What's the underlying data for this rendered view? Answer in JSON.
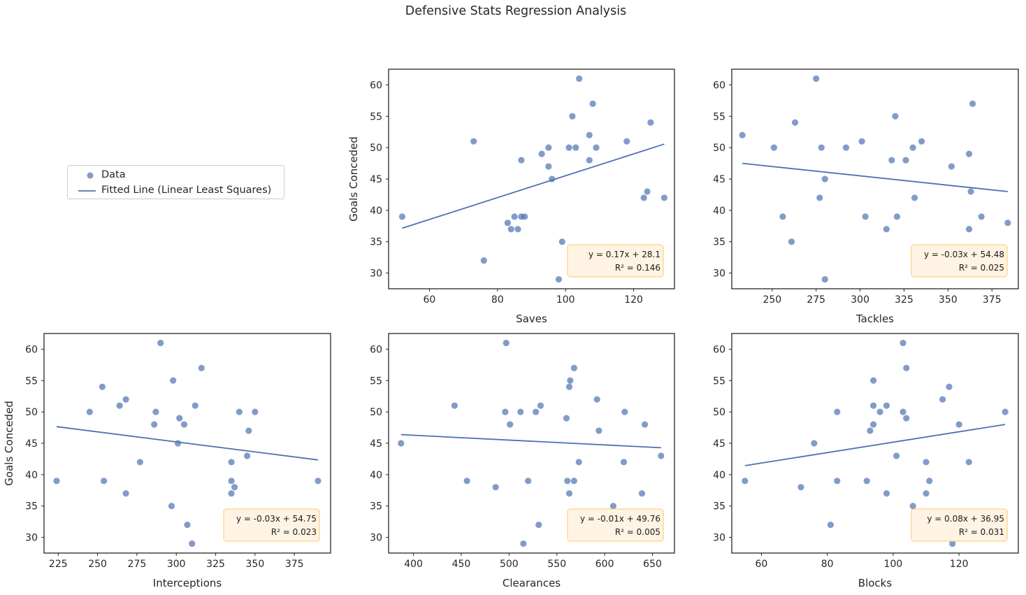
{
  "figure": {
    "title": "Defensive Stats Regression Analysis"
  },
  "legend": {
    "items": [
      {
        "label": "Data",
        "kind": "marker"
      },
      {
        "label": "Fitted Line (Linear Least Squares)",
        "kind": "line"
      }
    ]
  },
  "colors": {
    "points": "#4c72b0",
    "line": "#4c72b0",
    "box_fill": "#fff4e3",
    "box_edge": "#ffc766",
    "axes": "#262626"
  },
  "chart_data": [
    {
      "type": "scatter",
      "xlabel": "Saves",
      "ylabel": "Goals Conceded",
      "xlim": [
        48,
        132
      ],
      "ylim": [
        27.5,
        62.5
      ],
      "xticks": [
        60,
        80,
        100,
        120
      ],
      "yticks": [
        30,
        35,
        40,
        45,
        50,
        55,
        60
      ],
      "x": [
        52,
        73,
        76,
        83,
        84,
        85,
        86,
        87,
        87,
        88,
        93,
        95,
        95,
        96,
        98,
        99,
        101,
        102,
        103,
        104,
        107,
        107,
        108,
        109,
        118,
        123,
        124,
        125,
        129
      ],
      "y": [
        39,
        51,
        32,
        38,
        37,
        39,
        37,
        48,
        39,
        39,
        49,
        50,
        47,
        45,
        29,
        35,
        50,
        55,
        50,
        61,
        52,
        48,
        57,
        50,
        51,
        42,
        43,
        54,
        42
      ],
      "fit": {
        "slope": 0.17,
        "intercept": 28.1,
        "r2": 0.146
      },
      "annotation": {
        "equation": "y = 0.17x + 28.1",
        "r2_text": "R² = 0.146"
      }
    },
    {
      "type": "scatter",
      "xlabel": "Tackles",
      "ylabel": "",
      "xlim": [
        227,
        390
      ],
      "ylim": [
        27.5,
        62.5
      ],
      "xticks": [
        250,
        275,
        300,
        325,
        350,
        375
      ],
      "yticks": [
        30,
        35,
        40,
        45,
        50,
        55,
        60
      ],
      "x": [
        233,
        251,
        256,
        261,
        263,
        275,
        277,
        278,
        280,
        280,
        292,
        301,
        303,
        315,
        318,
        320,
        321,
        326,
        330,
        331,
        335,
        351,
        352,
        362,
        362,
        363,
        364,
        369,
        384
      ],
      "y": [
        52,
        50,
        39,
        35,
        54,
        61,
        42,
        50,
        45,
        29,
        50,
        51,
        39,
        37,
        48,
        55,
        39,
        48,
        50,
        42,
        51,
        32,
        47,
        49,
        37,
        43,
        57,
        39,
        38
      ],
      "fit": {
        "slope": -0.03,
        "intercept": 54.48,
        "r2": 0.025
      },
      "annotation": {
        "equation": "y = -0.03x + 54.48",
        "r2_text": "R² = 0.025"
      }
    },
    {
      "type": "scatter",
      "xlabel": "Interceptions",
      "ylabel": "Goals Conceded",
      "xlim": [
        216,
        398
      ],
      "ylim": [
        27.5,
        62.5
      ],
      "xticks": [
        225,
        250,
        275,
        300,
        325,
        350,
        375
      ],
      "yticks": [
        30,
        35,
        40,
        45,
        50,
        55,
        60
      ],
      "x": [
        224,
        245,
        253,
        254,
        264,
        268,
        268,
        277,
        286,
        287,
        290,
        297,
        298,
        301,
        302,
        305,
        307,
        310,
        312,
        316,
        335,
        335,
        335,
        337,
        340,
        345,
        346,
        350,
        390
      ],
      "y": [
        39,
        50,
        54,
        39,
        51,
        52,
        37,
        42,
        48,
        50,
        61,
        35,
        55,
        45,
        49,
        48,
        32,
        29,
        51,
        57,
        37,
        42,
        39,
        38,
        50,
        43,
        47,
        50,
        39
      ],
      "fit": {
        "slope": -0.03,
        "intercept": 54.75,
        "r2": 0.023
      },
      "annotation": {
        "equation": "y = -0.03x + 54.75",
        "r2_text": "R² = 0.023"
      }
    },
    {
      "type": "scatter",
      "xlabel": "Clearances",
      "ylabel": "",
      "xlim": [
        374,
        673
      ],
      "ylim": [
        27.5,
        62.5
      ],
      "xticks": [
        400,
        450,
        500,
        550,
        600,
        650
      ],
      "yticks": [
        30,
        35,
        40,
        45,
        50,
        55,
        60
      ],
      "x": [
        387,
        443,
        456,
        486,
        496,
        497,
        501,
        512,
        515,
        520,
        528,
        531,
        533,
        560,
        561,
        563,
        563,
        564,
        568,
        568,
        573,
        592,
        594,
        609,
        620,
        621,
        639,
        642,
        659
      ],
      "y": [
        45,
        51,
        39,
        38,
        50,
        61,
        48,
        50,
        29,
        39,
        50,
        32,
        51,
        49,
        39,
        54,
        37,
        55,
        57,
        39,
        42,
        52,
        47,
        35,
        42,
        50,
        37,
        48,
        43
      ],
      "fit": {
        "slope": -0.01,
        "intercept": 49.76,
        "r2": 0.005
      },
      "annotation": {
        "equation": "y = -0.01x + 49.76",
        "r2_text": "R² = 0.005"
      }
    },
    {
      "type": "scatter",
      "xlabel": "Blocks",
      "ylabel": "",
      "xlim": [
        51,
        138
      ],
      "ylim": [
        27.5,
        62.5
      ],
      "xticks": [
        60,
        80,
        100,
        120
      ],
      "yticks": [
        30,
        35,
        40,
        45,
        50,
        55,
        60
      ],
      "x": [
        55,
        72,
        76,
        81,
        83,
        83,
        92,
        93,
        94,
        94,
        94,
        96,
        98,
        98,
        101,
        103,
        103,
        104,
        104,
        106,
        110,
        110,
        111,
        115,
        117,
        118,
        120,
        123,
        134
      ],
      "y": [
        39,
        38,
        45,
        32,
        50,
        39,
        39,
        47,
        55,
        51,
        48,
        50,
        51,
        37,
        43,
        61,
        50,
        57,
        49,
        35,
        42,
        37,
        39,
        52,
        54,
        29,
        48,
        42,
        50
      ],
      "fit": {
        "slope": 0.08,
        "intercept": 36.95,
        "r2": 0.031
      },
      "annotation": {
        "equation": "y = 0.08x + 36.95",
        "r2_text": "R² = 0.031"
      }
    }
  ]
}
